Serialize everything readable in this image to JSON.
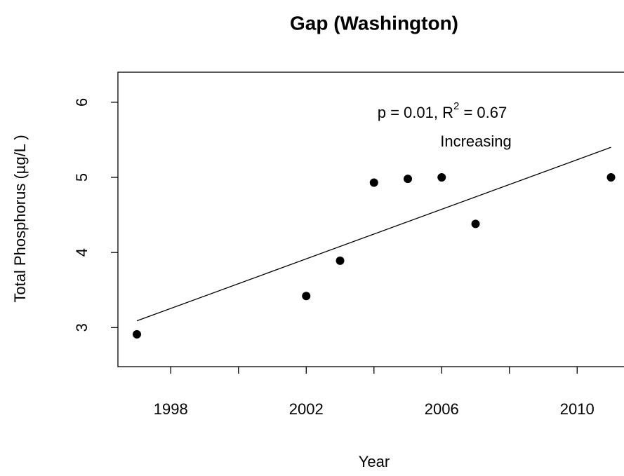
{
  "chart_data": {
    "type": "scatter",
    "title": "Gap (Washington)",
    "x_label": "Year",
    "y_label": "Total Phosphorus (µg/L )",
    "x": [
      1997,
      2002,
      2003,
      2004,
      2005,
      2006,
      2007,
      2011
    ],
    "values": [
      2.91,
      3.42,
      3.89,
      4.93,
      4.98,
      5.0,
      4.38,
      5.0
    ],
    "color": "#000000",
    "trend": {
      "x": [
        1997,
        2011
      ],
      "values": [
        3.09,
        5.4
      ]
    },
    "annotations": {
      "stat_parts": [
        "p = 0.01, R",
        "2",
        " = 0.67"
      ],
      "direction": "Increasing"
    },
    "xlim": [
      1996.44,
      2011.56
    ],
    "ylim": [
      2.48,
      6.4
    ],
    "xticks": [
      1998,
      {
        "value": 2000,
        "label": null
      },
      2002,
      {
        "value": 2004,
        "label": null
      },
      2006,
      {
        "value": 2008,
        "label": null
      },
      2010
    ],
    "yticks": [
      3,
      4,
      5,
      6
    ]
  }
}
